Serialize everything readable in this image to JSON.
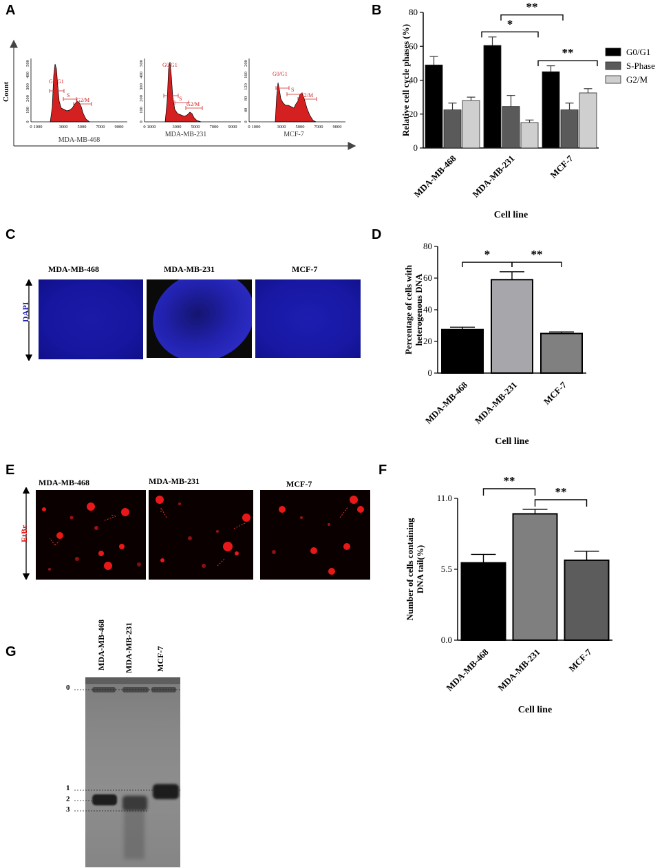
{
  "panels": {
    "A": {
      "letter": "A",
      "y_axis_label": "Count",
      "histograms": [
        {
          "cell_line": "MDA-MB-468",
          "y_ticks": [
            "0",
            "100",
            "200",
            "300",
            "400",
            "500"
          ],
          "x_ticks": [
            "0",
            "1000",
            "3000",
            "5000",
            "7000",
            "9000"
          ],
          "gates": [
            "G0/G1",
            "S",
            "G2/M"
          ]
        },
        {
          "cell_line": "MDA-MB-231",
          "y_ticks": [
            "0",
            "100",
            "200",
            "300",
            "400",
            "500"
          ],
          "x_ticks": [
            "0",
            "1000",
            "3000",
            "5000",
            "7000",
            "9000"
          ],
          "gates": [
            "G0/G1",
            "S",
            "G2/M"
          ]
        },
        {
          "cell_line": "MCF-7",
          "y_ticks": [
            "0",
            "40",
            "80",
            "120",
            "160",
            "200"
          ],
          "x_ticks": [
            "0",
            "1000",
            "3000",
            "5000",
            "7000",
            "9000"
          ],
          "gates": [
            "G0/G1",
            "S",
            "G2/M"
          ]
        }
      ]
    },
    "B": {
      "letter": "B",
      "chart_data": {
        "type": "bar",
        "categories": [
          "MDA-MB-468",
          "MDA-MB-231",
          "MCF-7"
        ],
        "series": [
          {
            "name": "G0/G1",
            "values": [
              49,
              60.5,
              45
            ],
            "errors": [
              5,
              5,
              3.5
            ],
            "color": "#000000"
          },
          {
            "name": "S-Phase",
            "values": [
              22.5,
              24.5,
              22.5
            ],
            "errors": [
              4,
              6.5,
              4
            ],
            "color": "#5a5a5a"
          },
          {
            "name": "G2/M",
            "values": [
              28,
              15,
              32.5
            ],
            "errors": [
              2,
              1.5,
              2.5
            ],
            "color": "#cfcfcf"
          }
        ],
        "ylabel": "Relative cell cycle phases (%)",
        "xlabel": "Cell line",
        "ylim": [
          0,
          80
        ],
        "yticks": [
          0,
          20,
          40,
          60,
          80
        ],
        "legend": "top-right",
        "significance": [
          {
            "label": "*",
            "from_category": 0,
            "to_category": 1
          },
          {
            "label": "**",
            "from_category": 1,
            "to_category": 2
          },
          {
            "label": "**",
            "from_category": 1,
            "to_category": 2
          }
        ]
      }
    },
    "C": {
      "letter": "C",
      "stain_label": "DAPI",
      "images": [
        "MDA-MB-468",
        "MDA-MB-231",
        "MCF-7"
      ],
      "stain_color": "#1f1fb0"
    },
    "D": {
      "letter": "D",
      "chart_data": {
        "type": "bar",
        "categories": [
          "MDA-MB-468",
          "MDA-MB-231",
          "MCF-7"
        ],
        "values": [
          27.5,
          59,
          25
        ],
        "errors": [
          1.5,
          5,
          1
        ],
        "colors": [
          "#000000",
          "#a6a6ab",
          "#808080"
        ],
        "ylabel": "Percentage of cells with heterogenous DNA",
        "xlabel": "Cell line",
        "ylim": [
          0,
          80
        ],
        "yticks": [
          0,
          20,
          40,
          60,
          80
        ],
        "significance": [
          {
            "label": "*",
            "from_category": 0,
            "to_category": 1
          },
          {
            "label": "**",
            "from_category": 1,
            "to_category": 2
          }
        ]
      }
    },
    "E": {
      "letter": "E",
      "stain_label": "EtBr",
      "images": [
        "MDA-MB-468",
        "MDA-MB-231",
        "MCF-7"
      ],
      "stain_color": "#e02020"
    },
    "F": {
      "letter": "F",
      "chart_data": {
        "type": "bar",
        "categories": [
          "MDA-MB-468",
          "MDA-MB-231",
          "MCF-7"
        ],
        "values": [
          6.0,
          9.8,
          6.2
        ],
        "errors": [
          0.65,
          0.35,
          0.7
        ],
        "colors": [
          "#000000",
          "#7f7f7f",
          "#5c5c5c"
        ],
        "ylabel": "Number of cells containing DNA tail(%)",
        "xlabel": "Cell line",
        "ylim": [
          0,
          11
        ],
        "yticks": [
          "0.0",
          "5.5",
          "11.0"
        ],
        "significance": [
          {
            "label": "**",
            "from_category": 0,
            "to_category": 1
          },
          {
            "label": "**",
            "from_category": 1,
            "to_category": 2
          }
        ]
      }
    },
    "G": {
      "letter": "G",
      "lanes": [
        "MDA-MB-468",
        "MDA-MB-231",
        "MCF-7"
      ],
      "band_markers": [
        "0",
        "1",
        "2",
        "3"
      ]
    }
  }
}
